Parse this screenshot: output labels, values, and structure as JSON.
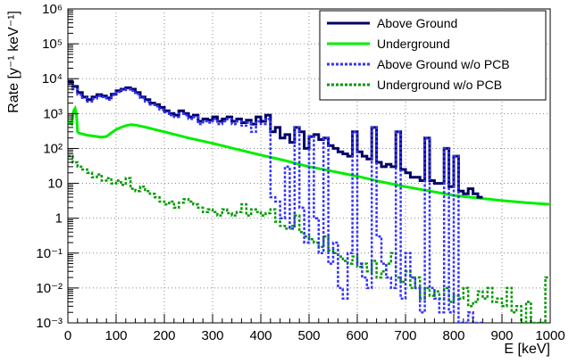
{
  "chart_data": {
    "type": "line",
    "xlabel": "E [keV]",
    "ylabel": "Rate [y⁻¹ keV⁻¹]",
    "xlim": [
      0,
      1000
    ],
    "ylim": [
      0.001,
      1000000
    ],
    "log_y": true,
    "grid": true,
    "legend_position": "top-right",
    "x_ticks": [
      "0",
      "100",
      "200",
      "300",
      "400",
      "500",
      "600",
      "700",
      "800",
      "900",
      "1000"
    ],
    "y_ticks": [
      "10⁻³",
      "10⁻²",
      "10⁻¹",
      "1",
      "10",
      "10²",
      "10³",
      "10⁴",
      "10⁵",
      "10⁶"
    ],
    "series": [
      {
        "name": "Above Ground",
        "color": "#000066",
        "style": "solid",
        "step": true,
        "x": [
          0,
          10,
          20,
          30,
          40,
          50,
          60,
          70,
          80,
          90,
          100,
          110,
          120,
          130,
          140,
          150,
          160,
          170,
          180,
          190,
          200,
          210,
          220,
          230,
          240,
          250,
          260,
          270,
          280,
          290,
          300,
          310,
          320,
          330,
          340,
          350,
          360,
          370,
          380,
          390,
          400,
          410,
          420,
          430,
          440,
          450,
          460,
          470,
          480,
          490,
          500,
          510,
          520,
          530,
          540,
          550,
          560,
          570,
          580,
          590,
          600,
          610,
          620,
          630,
          640,
          650,
          660,
          670,
          680,
          690,
          700,
          710,
          720,
          730,
          740,
          750,
          760,
          770,
          780,
          790,
          800,
          810,
          820,
          830,
          840,
          850
        ],
        "values": [
          8000,
          6000,
          4000,
          3000,
          2500,
          3000,
          3500,
          3200,
          2800,
          3600,
          4500,
          5000,
          5500,
          5000,
          4000,
          3000,
          2500,
          2000,
          1800,
          1500,
          1200,
          1000,
          900,
          1200,
          1000,
          800,
          900,
          600,
          700,
          650,
          800,
          600,
          700,
          800,
          600,
          700,
          550,
          650,
          500,
          800,
          600,
          900,
          300,
          400,
          200,
          250,
          150,
          400,
          300,
          100,
          220,
          250,
          180,
          200,
          120,
          100,
          80,
          70,
          60,
          300,
          80,
          60,
          50,
          400,
          40,
          30,
          35,
          30,
          300,
          25,
          20,
          15,
          15,
          12,
          200,
          12,
          10,
          10,
          100,
          8,
          60,
          6,
          5,
          7,
          5,
          4
        ]
      },
      {
        "name": "Underground",
        "color": "#00ee00",
        "style": "solid",
        "step": false,
        "x": [
          0,
          8,
          12,
          15,
          18,
          20,
          22,
          25,
          30,
          40,
          50,
          60,
          70,
          80,
          90,
          100,
          110,
          120,
          130,
          140,
          150,
          160,
          170,
          180,
          200,
          250,
          300,
          350,
          400,
          450,
          500,
          550,
          600,
          650,
          700,
          750,
          800,
          850,
          900,
          950,
          1000
        ],
        "values": [
          600,
          500,
          1200,
          1400,
          900,
          300,
          280,
          270,
          260,
          240,
          230,
          220,
          210,
          220,
          280,
          350,
          400,
          450,
          480,
          470,
          440,
          410,
          380,
          350,
          300,
          200,
          140,
          95,
          65,
          45,
          30,
          22,
          16,
          11,
          8,
          6,
          4.5,
          3.8,
          3.2,
          2.8,
          2.5
        ]
      },
      {
        "name": "Above Ground w/o PCB",
        "color": "#3333ff",
        "style": "dotted",
        "step": true,
        "x": [
          0,
          10,
          20,
          30,
          40,
          50,
          60,
          70,
          80,
          90,
          100,
          110,
          120,
          130,
          140,
          150,
          160,
          170,
          180,
          190,
          200,
          210,
          220,
          230,
          240,
          250,
          260,
          270,
          280,
          290,
          300,
          310,
          320,
          330,
          340,
          350,
          360,
          370,
          380,
          390,
          400,
          410,
          420,
          430,
          440,
          450,
          460,
          470,
          480,
          490,
          500,
          510,
          520,
          530,
          540,
          550,
          560,
          570,
          580,
          590,
          600,
          610,
          620,
          630,
          640,
          650,
          660,
          670,
          680,
          690,
          700,
          710,
          720,
          730,
          740,
          750,
          760,
          770,
          780,
          790,
          800,
          810,
          820,
          830,
          840,
          850
        ],
        "values": [
          7000,
          5000,
          3500,
          2800,
          2200,
          2700,
          3200,
          3000,
          2500,
          3400,
          4200,
          4700,
          5000,
          4500,
          3600,
          2800,
          2200,
          1800,
          1600,
          1300,
          1100,
          900,
          800,
          1000,
          900,
          700,
          800,
          500,
          600,
          550,
          700,
          500,
          600,
          700,
          500,
          600,
          450,
          550,
          300,
          600,
          500,
          700,
          4,
          3,
          1,
          30,
          0.5,
          400,
          2,
          0.2,
          220,
          1,
          0.1,
          200,
          0.05,
          0.2,
          0.01,
          0.005,
          0.1,
          300,
          0.05,
          0.02,
          0.01,
          400,
          0.3,
          0.05,
          0.02,
          0.01,
          300,
          0.005,
          0.1,
          0.02,
          0.01,
          0.002,
          200,
          0.01,
          0.005,
          0.002,
          100,
          0.002,
          60,
          0.001,
          0.001,
          0.002,
          0.001,
          0.001
        ]
      },
      {
        "name": "Underground w/o PCB",
        "color": "#009900",
        "style": "dotted",
        "step": true,
        "x": [
          0,
          10,
          20,
          30,
          40,
          50,
          60,
          70,
          80,
          90,
          100,
          110,
          120,
          130,
          140,
          150,
          160,
          170,
          180,
          190,
          200,
          210,
          220,
          230,
          240,
          250,
          260,
          270,
          280,
          290,
          300,
          310,
          320,
          330,
          340,
          350,
          360,
          370,
          380,
          390,
          400,
          410,
          420,
          430,
          440,
          450,
          460,
          470,
          480,
          490,
          500,
          510,
          520,
          530,
          540,
          550,
          560,
          570,
          580,
          590,
          600,
          610,
          620,
          630,
          640,
          650,
          660,
          670,
          680,
          690,
          700,
          710,
          720,
          730,
          740,
          750,
          760,
          770,
          780,
          790,
          800,
          810,
          820,
          830,
          840,
          850,
          860,
          870,
          880,
          890,
          900,
          910,
          920,
          930,
          940,
          950,
          960,
          970,
          980,
          990
        ],
        "values": [
          60,
          40,
          30,
          25,
          20,
          15,
          18,
          12,
          14,
          10,
          12,
          9,
          14,
          7,
          6,
          8,
          6,
          5,
          4,
          3,
          2.5,
          3,
          2,
          2.8,
          3.5,
          3,
          2.5,
          2,
          1.5,
          1.8,
          1.5,
          1.2,
          1.8,
          1.4,
          1.2,
          1.5,
          2.5,
          1.2,
          1.8,
          1.5,
          1.2,
          1.4,
          1.8,
          0.8,
          0.6,
          0.5,
          0.6,
          1.2,
          0.4,
          0.3,
          0.25,
          0.2,
          0.15,
          0.3,
          0.12,
          0.1,
          0.08,
          0.06,
          0.05,
          0.08,
          0.04,
          0.05,
          0.03,
          0.06,
          0.02,
          0.03,
          0.05,
          0.1,
          0.02,
          0.015,
          0.03,
          0.01,
          0.02,
          0.005,
          0.01,
          0.006,
          0.008,
          0.005,
          0.01,
          0.004,
          0.006,
          0.005,
          0.01,
          0.003,
          0.004,
          0.008,
          0.005,
          0.01,
          0.004,
          0.005,
          0.003,
          0.01,
          0.002,
          0.003,
          0.001,
          0.004,
          0.001,
          0.001,
          0.001,
          0.02
        ]
      }
    ]
  }
}
